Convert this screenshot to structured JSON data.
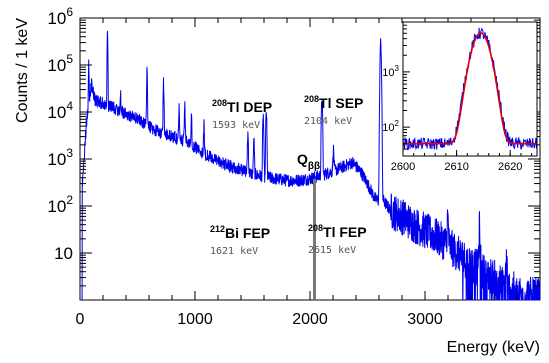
{
  "chart_data": [
    {
      "type": "line",
      "xlabel": "Energy (keV)",
      "ylabel": "Counts / 1 keV",
      "xlim": [
        0,
        4000
      ],
      "ylim": [
        1,
        1000000
      ],
      "yscale": "log",
      "x_ticks": [
        0,
        1000,
        2000,
        3000
      ],
      "y_ticks": [
        {
          "value": 10,
          "label": "10",
          "mantissa": "10",
          "exp": ""
        },
        {
          "value": 100,
          "label": "10^2",
          "mantissa": "10",
          "exp": "2"
        },
        {
          "value": 1000,
          "label": "10^3",
          "mantissa": "10",
          "exp": "3"
        },
        {
          "value": 10000,
          "label": "10^4",
          "mantissa": "10",
          "exp": "4"
        },
        {
          "value": 100000,
          "label": "10^5",
          "mantissa": "10",
          "exp": "5"
        },
        {
          "value": 1000000,
          "label": "10^6",
          "mantissa": "10",
          "exp": "6"
        }
      ],
      "series": [
        {
          "color": "#0000ee",
          "continuum": [
            [
              20,
              300
            ],
            [
              60,
              8000
            ],
            [
              100,
              40000
            ],
            [
              130,
              18000
            ],
            [
              200,
              15000
            ],
            [
              300,
              12000
            ],
            [
              400,
              9000
            ],
            [
              500,
              7000
            ],
            [
              600,
              5000
            ],
            [
              700,
              3500
            ],
            [
              800,
              3000
            ],
            [
              900,
              2500
            ],
            [
              1000,
              1800
            ],
            [
              1100,
              1200
            ],
            [
              1200,
              900
            ],
            [
              1300,
              700
            ],
            [
              1400,
              600
            ],
            [
              1500,
              480
            ],
            [
              1600,
              420
            ],
            [
              1700,
              380
            ],
            [
              1800,
              350
            ],
            [
              1900,
              350
            ],
            [
              2000,
              380
            ],
            [
              2100,
              450
            ],
            [
              2200,
              550
            ],
            [
              2300,
              700
            ],
            [
              2370,
              850
            ],
            [
              2450,
              500
            ],
            [
              2500,
              300
            ],
            [
              2560,
              150
            ],
            [
              2610,
              120
            ],
            [
              2630,
              140
            ],
            [
              2700,
              80
            ],
            [
              2800,
              60
            ],
            [
              2900,
              40
            ],
            [
              3000,
              30
            ],
            [
              3100,
              22
            ],
            [
              3200,
              15
            ],
            [
              3300,
              9
            ],
            [
              3400,
              6
            ],
            [
              3500,
              4
            ],
            [
              3600,
              3
            ],
            [
              3700,
              2
            ],
            [
              3800,
              1.5
            ],
            [
              3950,
              1.2
            ]
          ],
          "peaks": [
            [
              76,
              100000
            ],
            [
              239,
              500000
            ],
            [
              352,
              20000
            ],
            [
              583,
              80000
            ],
            [
              727,
              40000
            ],
            [
              861,
              10000
            ],
            [
              911,
              12000
            ],
            [
              969,
              6000
            ],
            [
              1078,
              4000
            ],
            [
              1460,
              3000
            ],
            [
              1512,
              2000
            ],
            [
              1593,
              8000
            ],
            [
              1620,
              10000
            ],
            [
              2104,
              20000
            ],
            [
              2204,
              1000
            ],
            [
              2615,
              300000
            ],
            [
              3198,
              40
            ],
            [
              3475,
              30
            ],
            [
              3708,
              5
            ]
          ]
        }
      ],
      "annotations": [
        {
          "sup": "208",
          "label": "Tl DEP",
          "energy": "1593 keV"
        },
        {
          "sup": "208",
          "label": "Tl SEP",
          "energy": "2104 keV"
        },
        {
          "sup": "212",
          "label": "Bi FEP",
          "energy": "1621 keV"
        },
        {
          "sup": "208",
          "label": "Tl FEP",
          "energy": "2615 keV"
        }
      ],
      "qbb": {
        "label": "Q",
        "sub": "ββ",
        "energy": 2039,
        "color": "#777777"
      }
    },
    {
      "type": "line",
      "inset": true,
      "xlim": [
        2600,
        2625
      ],
      "ylim": [
        30,
        8000
      ],
      "yscale": "log",
      "x_ticks": [
        2600,
        2610,
        2620
      ],
      "y_ticks": [
        {
          "value": 100,
          "label": "10^2",
          "mantissa": "10",
          "exp": "2"
        },
        {
          "value": 1000,
          "label": "10^3",
          "mantissa": "10",
          "exp": "3"
        }
      ],
      "series": [
        {
          "kind": "data",
          "color": "#0000ee",
          "background": 50,
          "peak_center": 2614.5,
          "peak_height": 5000,
          "peak_sigma": 1.45
        },
        {
          "kind": "fit",
          "color": "#dd0000",
          "background": 50,
          "peak_center": 2614.5,
          "peak_height": 5000,
          "peak_sigma": 1.4
        }
      ]
    }
  ]
}
